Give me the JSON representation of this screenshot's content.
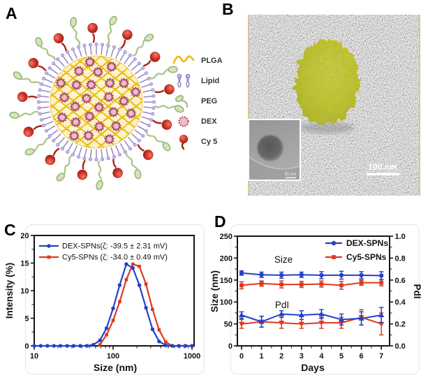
{
  "panels": {
    "a": {
      "label": "A",
      "legend": [
        {
          "icon": "plga-icon",
          "label": "PLGA"
        },
        {
          "icon": "lipid-icon",
          "label": "Lipid"
        },
        {
          "icon": "peg-icon",
          "label": "PEG"
        },
        {
          "icon": "dex-icon",
          "label": "DEX"
        },
        {
          "icon": "cy5-icon",
          "label": "Cy 5"
        }
      ]
    },
    "b": {
      "label": "B",
      "scalebar_main": "100 nm",
      "scalebar_inset": "50 nm"
    },
    "c": {
      "label": "C"
    },
    "d": {
      "label": "D"
    }
  },
  "colors": {
    "dex_series_blue": "#2342c8",
    "cy5_series_red": "#dd3a20",
    "plga_yellow": "#edbb10",
    "lipid_purple": "#8d7cc2",
    "peg_green": "#a9c48a",
    "dex_pink": "#f3bac8",
    "cy5_dark_red": "#9a1b12",
    "blob_yellow": "#c3c91f"
  },
  "chart_data": [
    {
      "panel": "C",
      "type": "line",
      "xlabel": "Size (nm)",
      "ylabel": "Intensity (%)",
      "xscale": "log",
      "xlim": [
        10,
        1000
      ],
      "ylim": [
        0,
        20
      ],
      "xticks": [
        10,
        100,
        1000
      ],
      "yticks": [
        0,
        5,
        10,
        15,
        20
      ],
      "grid": false,
      "legend_position": "top-left",
      "x": [
        10,
        12.1,
        14.7,
        17.8,
        21.5,
        26.1,
        31.6,
        38.3,
        46.4,
        56.2,
        68.1,
        82.5,
        100,
        121,
        147,
        178,
        215,
        261,
        316,
        383,
        464,
        562,
        681,
        825,
        1000
      ],
      "series": [
        {
          "name": "DEX-SPNs(ζ: -39.5 ± 2.31 mV)",
          "color": "#2342c8",
          "marker": "circle",
          "draw_from_index": 0,
          "values": [
            0,
            0,
            0,
            0,
            0,
            0,
            0,
            0,
            0,
            0.2,
            1.0,
            3.2,
            6.8,
            11.0,
            14.8,
            14.1,
            11.0,
            6.9,
            3.0,
            0.8,
            0.1,
            0,
            0,
            0,
            0
          ]
        },
        {
          "name": "Cy5-SPNs (ζ: -34.0 ± 0.49 mV)",
          "color": "#dd3a20",
          "marker": "square",
          "draw_from_index": 10,
          "values": [
            0,
            0,
            0,
            0,
            0,
            0,
            0,
            0,
            0,
            0,
            0.2,
            2.0,
            4.6,
            8.0,
            12.0,
            14.8,
            14.4,
            11.2,
            6.6,
            2.9,
            0.7,
            0,
            0,
            0,
            0
          ]
        }
      ]
    },
    {
      "panel": "D",
      "type": "line",
      "xlabel": "Days",
      "ylabel_left": "Size (nm)",
      "ylabel_right": "PdI",
      "xlim": [
        0,
        7
      ],
      "ylim_left": [
        0,
        250
      ],
      "ylim_right": [
        0,
        1.0
      ],
      "xticks": [
        0,
        1,
        2,
        3,
        4,
        5,
        6,
        7
      ],
      "yticks_left": [
        0,
        50,
        100,
        150,
        200,
        250
      ],
      "yticks_right": [
        "0.0",
        "0.2",
        "0.4",
        "0.6",
        "0.8",
        "1.0"
      ],
      "grid": false,
      "legend": [
        "DEX-SPNs",
        "Cy5-SPNs"
      ],
      "annotations": [
        {
          "text": "Size"
        },
        {
          "text": "PdI"
        }
      ],
      "series": [
        {
          "name": "Cy5-SPNs",
          "group": "Size",
          "axis": "left",
          "color": "#dd3a20",
          "marker": "square",
          "values": [
            138,
            142,
            140,
            140,
            141,
            138,
            144,
            144
          ],
          "errors": [
            8,
            6,
            8,
            7,
            7,
            9,
            6,
            7
          ]
        },
        {
          "name": "DEX-SPNs",
          "group": "Size",
          "axis": "left",
          "color": "#2342c8",
          "marker": "circle",
          "values": [
            166,
            162,
            161,
            162,
            161,
            161,
            161,
            160
          ],
          "errors": [
            5,
            6,
            7,
            6,
            8,
            9,
            8,
            9
          ]
        },
        {
          "name": "Cy5-SPNs",
          "group": "PdI",
          "axis": "right",
          "color": "#dd3a20",
          "marker": "triangle-down",
          "values": [
            0.2,
            0.22,
            0.21,
            0.2,
            0.21,
            0.21,
            0.26,
            0.2
          ],
          "errors": [
            0.04,
            0.05,
            0.05,
            0.04,
            0.05,
            0.05,
            0.07,
            0.1
          ]
        },
        {
          "name": "DEX-SPNs",
          "group": "PdI",
          "axis": "right",
          "color": "#2342c8",
          "marker": "triangle-up",
          "values": [
            0.28,
            0.22,
            0.29,
            0.28,
            0.29,
            0.24,
            0.25,
            0.28
          ],
          "errors": [
            0.03,
            0.05,
            0.03,
            0.04,
            0.04,
            0.05,
            0.06,
            0.07
          ]
        }
      ]
    }
  ]
}
